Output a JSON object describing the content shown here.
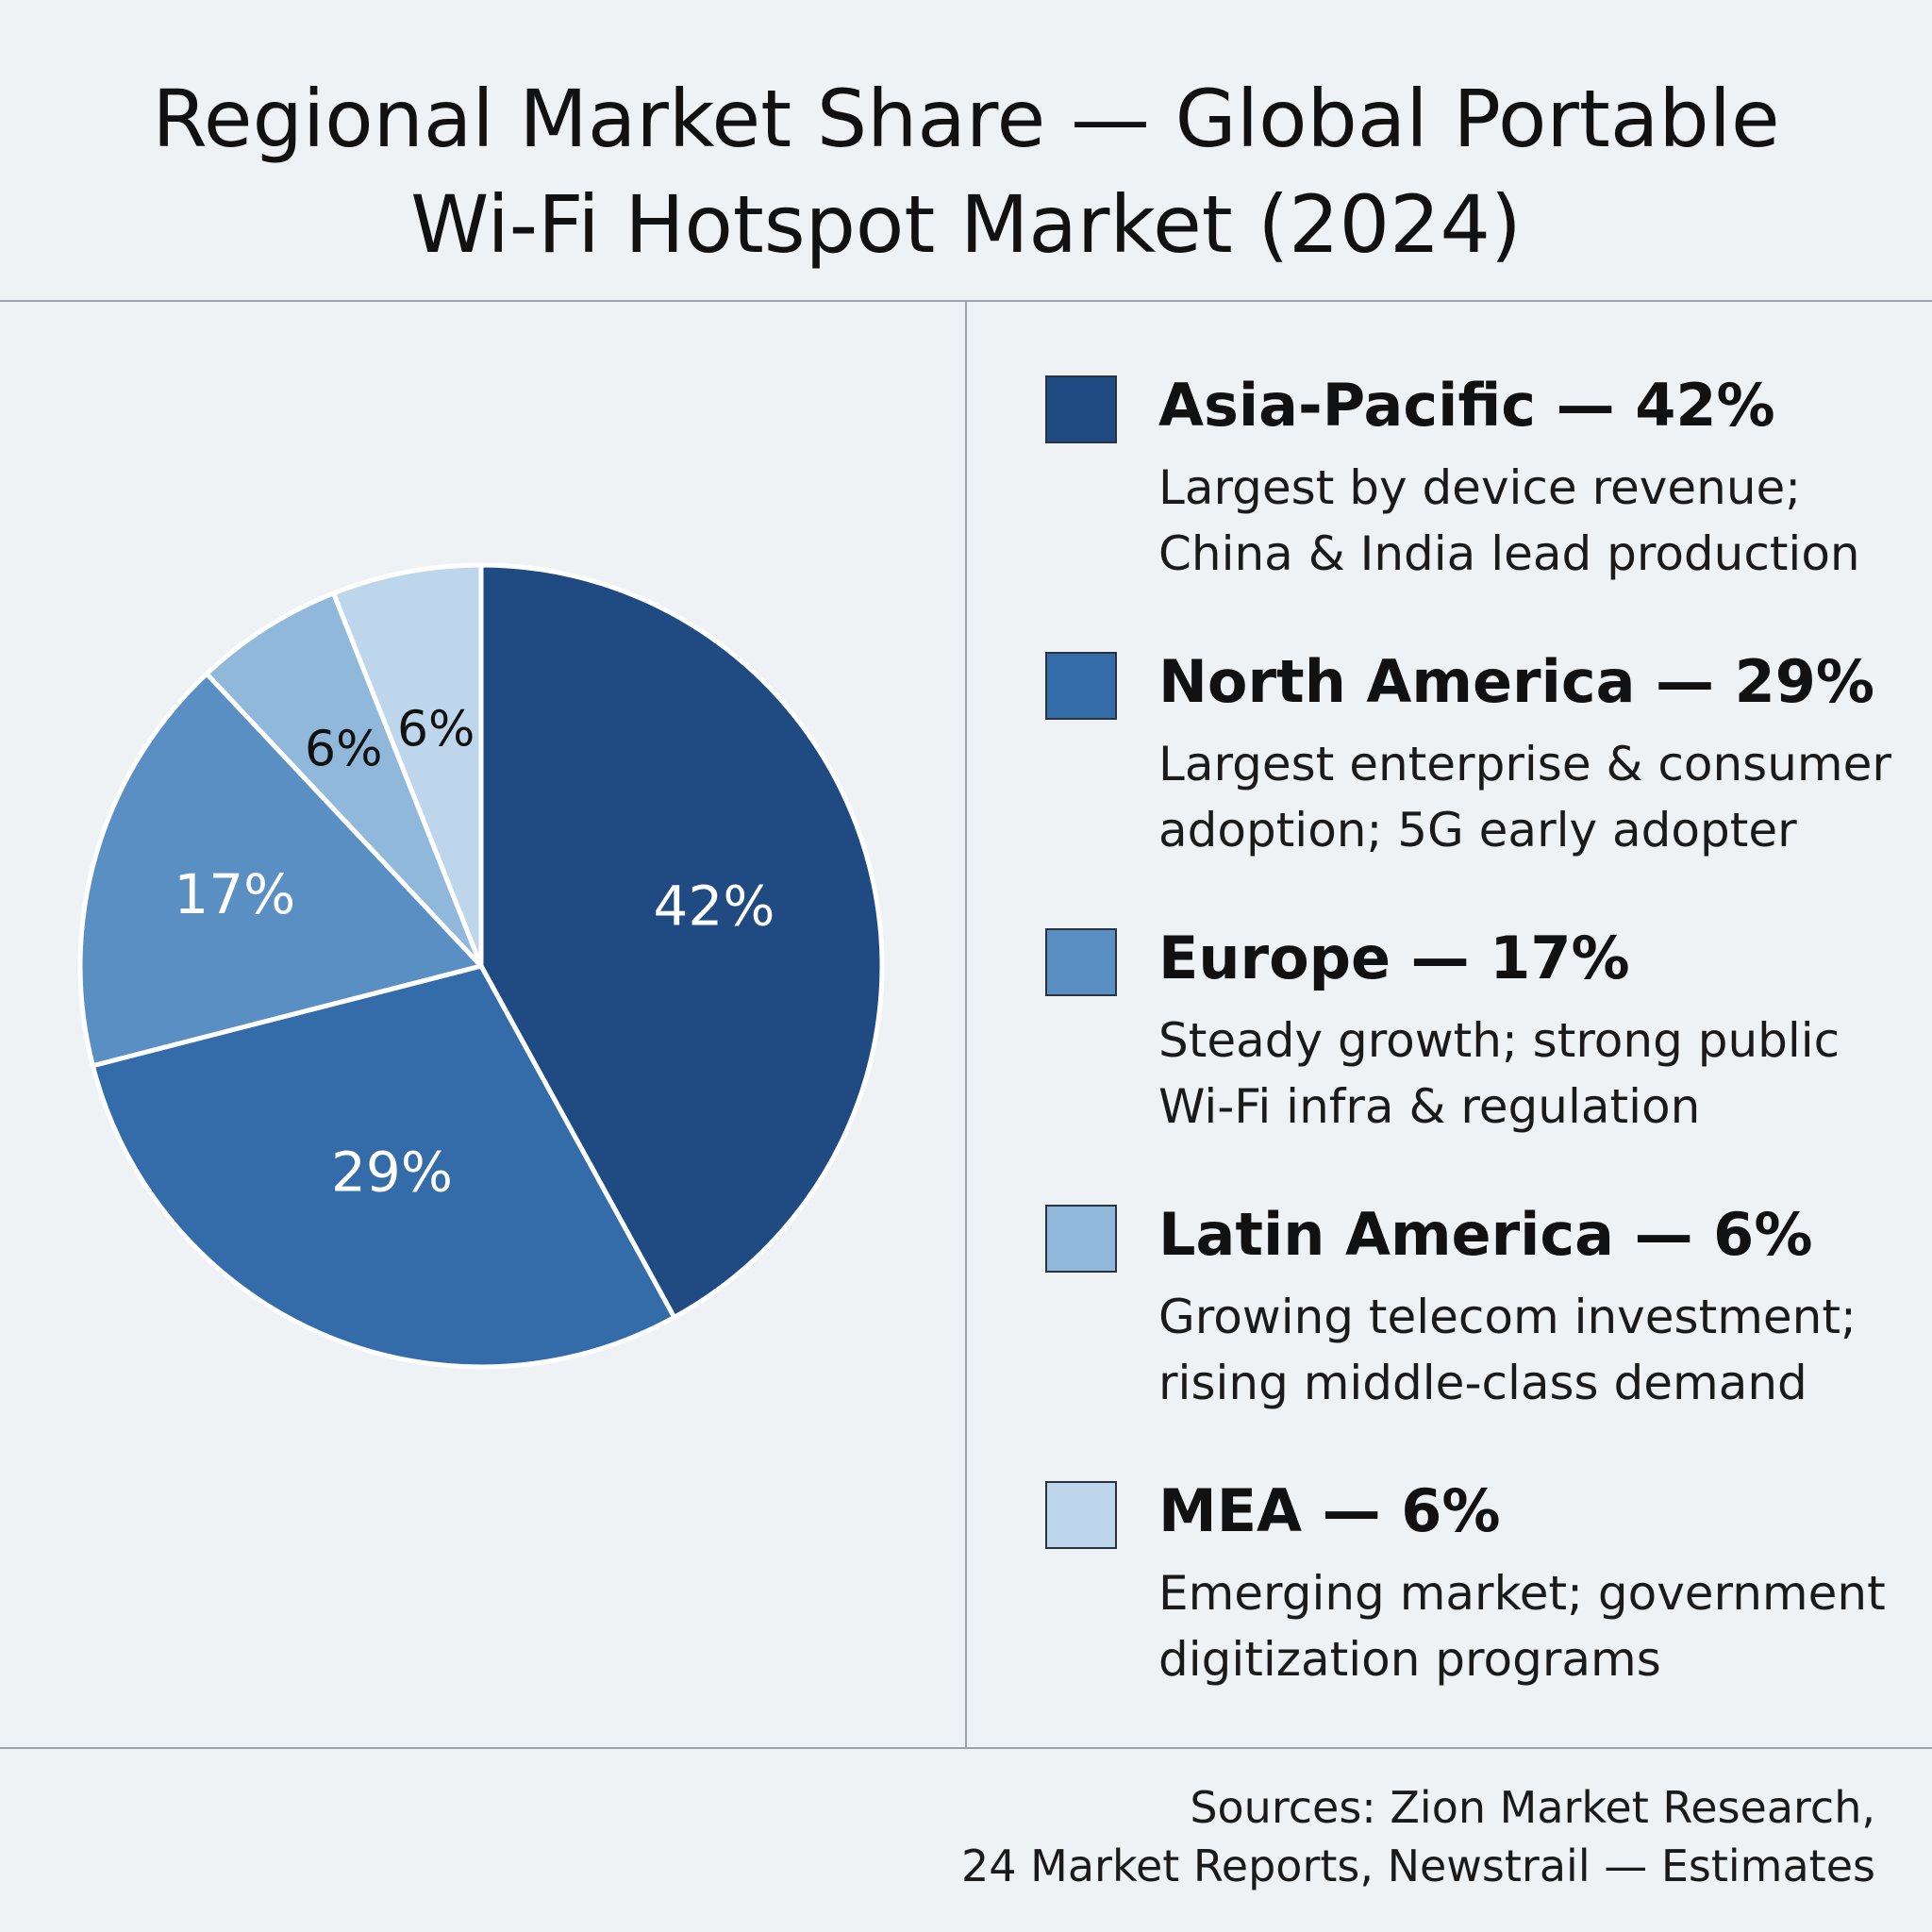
{
  "title_lines": [
    "Regional Market Share — Global Portable",
    "Wi-Fi Hotspot Market (2024)"
  ],
  "chart_data": {
    "type": "pie",
    "title": "Regional Market Share — Global Portable Wi-Fi Hotspot Market (2024)",
    "slices": [
      {
        "label": "Asia-Pacific",
        "value": 42,
        "display": "42%",
        "color": "#1f4a82",
        "label_color": "#ffffff"
      },
      {
        "label": "North America",
        "value": 29,
        "display": "29%",
        "color": "#336ca9",
        "label_color": "#ffffff"
      },
      {
        "label": "Europe",
        "value": 17,
        "display": "17%",
        "color": "#5a8fc4",
        "label_color": "#ffffff"
      },
      {
        "label": "Latin America",
        "value": 6,
        "display": "6%",
        "color": "#8fb8da",
        "label_color": "#111111"
      },
      {
        "label": "MEA",
        "value": 6,
        "display": "6%",
        "color": "#bdd6ec",
        "label_color": "#111111"
      }
    ],
    "legend_placement": "right"
  },
  "legend": [
    {
      "title": "Asia-Pacific — 42%",
      "desc": [
        "Largest by device revenue;",
        "China & India lead production"
      ],
      "color": "#1f4a82"
    },
    {
      "title": "North America — 29%",
      "desc": [
        "Largest enterprise & consumer",
        "adoption; 5G early adopter"
      ],
      "color": "#336ca9"
    },
    {
      "title": "Europe — 17%",
      "desc": [
        "Steady growth; strong public",
        "Wi-Fi infra & regulation"
      ],
      "color": "#5a8fc4"
    },
    {
      "title": "Latin America — 6%",
      "desc": [
        "Growing telecom investment;",
        "rising middle-class demand"
      ],
      "color": "#8fb8da"
    },
    {
      "title": "MEA — 6%",
      "desc": [
        "Emerging market; government",
        "digitization programs"
      ],
      "color": "#bdd6ec"
    }
  ],
  "sources_lines": [
    "Sources: Zion Market Research,",
    "24 Market Reports, Newstrail — Estimates"
  ]
}
